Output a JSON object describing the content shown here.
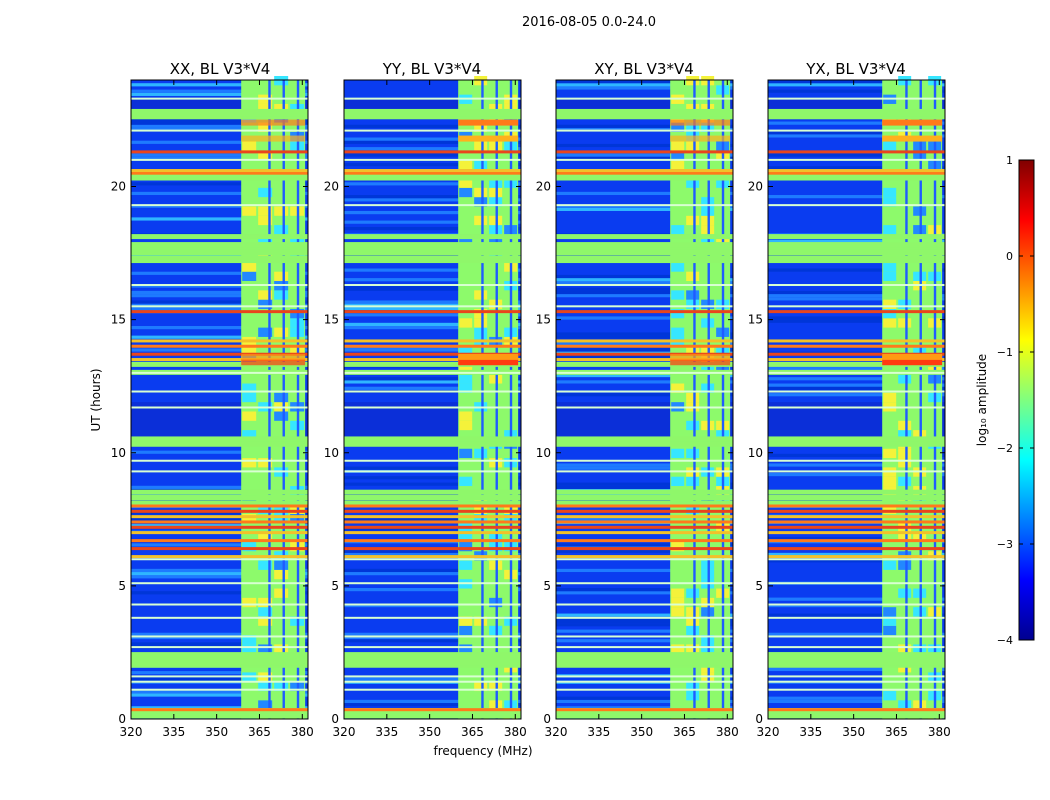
{
  "figure_title": "2016-08-05 0.0-24.0",
  "colorbar": {
    "label": "log₁₀ amplitude",
    "range": [
      -4,
      1
    ],
    "ticks": [
      "1",
      "0",
      "−1",
      "−2",
      "−3",
      "−4"
    ],
    "tick_values": [
      1,
      0,
      -1,
      -2,
      -3,
      -4
    ],
    "colormap": "jet"
  },
  "chart_data": [
    {
      "type": "heatmap",
      "title": "XX, BL V3*V4",
      "xlabel": "",
      "ylabel": "UT (hours)",
      "xlim": [
        320,
        382
      ],
      "ylim": [
        0,
        24
      ],
      "xticks": [
        "320",
        "335",
        "350",
        "365",
        "380"
      ],
      "xtick_values": [
        320,
        335,
        350,
        365,
        380
      ],
      "yticks": [
        "0",
        "5",
        "10",
        "15",
        "20"
      ],
      "ytick_values": [
        0,
        5,
        10,
        15,
        20
      ]
    },
    {
      "type": "heatmap",
      "title": "YY, BL V3*V4",
      "xlabel": "frequency (MHz)",
      "ylabel": "",
      "xlim": [
        320,
        382
      ],
      "ylim": [
        0,
        24
      ],
      "xticks": [
        "320",
        "335",
        "350",
        "365",
        "380"
      ],
      "xtick_values": [
        320,
        335,
        350,
        365,
        380
      ],
      "yticks": [
        "0",
        "5",
        "10",
        "15",
        "20"
      ],
      "ytick_values": [
        0,
        5,
        10,
        15,
        20
      ]
    },
    {
      "type": "heatmap",
      "title": "XY, BL V3*V4",
      "xlabel": "",
      "ylabel": "",
      "xlim": [
        320,
        382
      ],
      "ylim": [
        0,
        24
      ],
      "xticks": [
        "320",
        "335",
        "350",
        "365",
        "380"
      ],
      "xtick_values": [
        320,
        335,
        350,
        365,
        380
      ],
      "yticks": [
        "0",
        "5",
        "10",
        "15",
        "20"
      ],
      "ytick_values": [
        0,
        5,
        10,
        15,
        20
      ]
    },
    {
      "type": "heatmap",
      "title": "YX, BL V3*V4",
      "xlabel": "",
      "ylabel": "",
      "xlim": [
        320,
        382
      ],
      "ylim": [
        0,
        24
      ],
      "xticks": [
        "320",
        "335",
        "350",
        "365",
        "380"
      ],
      "xtick_values": [
        320,
        335,
        350,
        365,
        380
      ],
      "yticks": [
        "0",
        "5",
        "10",
        "15",
        "20"
      ],
      "ytick_values": [
        0,
        5,
        10,
        15,
        20
      ]
    }
  ],
  "bands": {
    "saturated_freq_band": [
      360,
      381
    ],
    "saturated_hours": [
      0.1,
      0.2,
      0.3,
      2.0,
      2.1,
      2.2,
      2.3,
      2.4,
      8.1,
      8.3,
      8.5,
      10.3,
      10.4,
      10.5,
      13.0,
      13.3,
      17.2,
      17.3,
      17.5,
      17.6,
      17.7,
      17.8,
      18.1,
      20.3,
      20.4,
      20.5,
      22.6,
      22.7,
      22.8
    ],
    "hot_hours": [
      0.35,
      6.1,
      6.4,
      6.7,
      7.0,
      7.2,
      7.4,
      7.6,
      7.8,
      8.0,
      13.5,
      13.7,
      14.0,
      14.2,
      15.3,
      20.5,
      20.6,
      21.3
    ],
    "bright_line_hours": [
      1.1,
      1.4,
      1.6,
      2.7,
      3.1,
      3.8,
      4.3,
      5.1,
      6.0,
      9.3,
      9.7,
      11.7,
      12.3,
      13.0,
      15.5,
      16.3,
      19.3,
      21.0,
      22.1,
      23.3
    ],
    "quiet_hour_ranges": [
      [
        10.6,
        11.9
      ],
      [
        22.9,
        23.3
      ]
    ],
    "vertical_gap_freqs": [
      368.5,
      373.5,
      378.5
    ]
  }
}
